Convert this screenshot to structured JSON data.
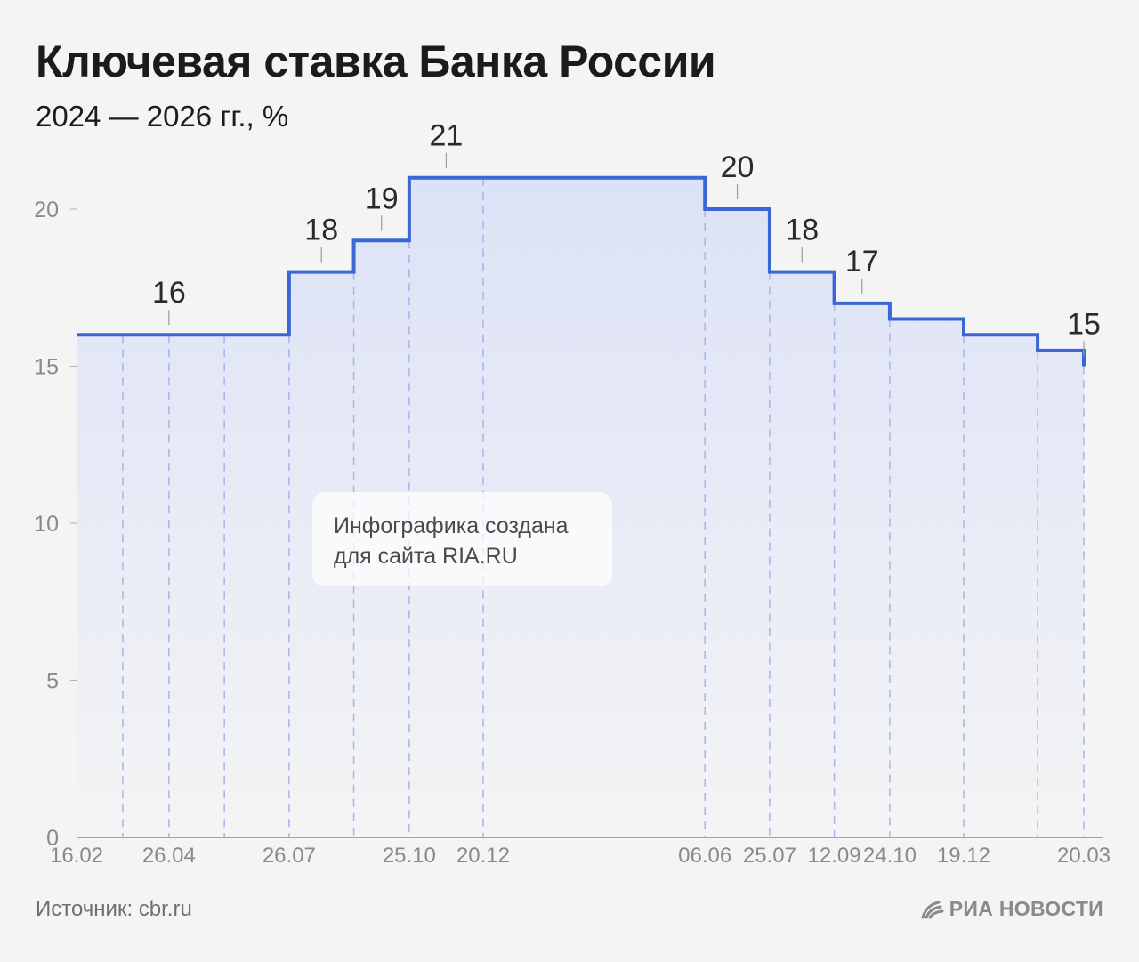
{
  "header": {
    "title": "Ключевая ставка Банка России",
    "subtitle": "2024 — 2026 гг., %"
  },
  "watermark": {
    "line1": "Инфографика создана",
    "line2": "для сайта RIA.RU"
  },
  "footer": {
    "source": "Источник: cbr.ru",
    "logo_text": "РИА НОВОСТИ",
    "logo_icon": "ria-logo-icon"
  },
  "colors": {
    "line": "#3a66d6",
    "fill_top": "#dde3f6",
    "dash": "#a9b3ea",
    "axis": "#8a8a8a",
    "tick_text": "#8a8a8a"
  },
  "chart_data": {
    "type": "line",
    "step": true,
    "ylim": [
      0,
      21
    ],
    "yticks": [
      0,
      5,
      10,
      15,
      20
    ],
    "xtick_labels": [
      "16.02",
      "26.04",
      "26.07",
      "25.10",
      "20.12",
      "06.06",
      "25.07",
      "12.09",
      "24.10",
      "19.12",
      "20.03"
    ],
    "points": [
      {
        "date": "2024-02-16",
        "value": 16,
        "xtick": "16.02"
      },
      {
        "date": "2024-03-22",
        "value": 16
      },
      {
        "date": "2024-04-26",
        "value": 16,
        "xtick": "26.04",
        "label": "16"
      },
      {
        "date": "2024-06-07",
        "value": 16
      },
      {
        "date": "2024-07-26",
        "value": 18,
        "xtick": "26.07",
        "label": "18"
      },
      {
        "date": "2024-09-13",
        "value": 19,
        "label": "19"
      },
      {
        "date": "2024-10-25",
        "value": 21,
        "xtick": "25.10",
        "label": "21"
      },
      {
        "date": "2024-12-20",
        "value": 21,
        "xtick": "20.12"
      },
      {
        "date": "2025-06-06",
        "value": 20,
        "xtick": "06.06",
        "label": "20"
      },
      {
        "date": "2025-07-25",
        "value": 18,
        "xtick": "25.07",
        "label": "18"
      },
      {
        "date": "2025-09-12",
        "value": 17,
        "xtick": "12.09",
        "label": "17"
      },
      {
        "date": "2025-10-24",
        "value": 16.5,
        "xtick": "24.10"
      },
      {
        "date": "2025-12-19",
        "value": 16,
        "xtick": "19.12"
      },
      {
        "date": "2026-02-13",
        "value": 15.5
      },
      {
        "date": "2026-03-20",
        "value": 15,
        "xtick": "20.03",
        "label": "15"
      }
    ]
  }
}
